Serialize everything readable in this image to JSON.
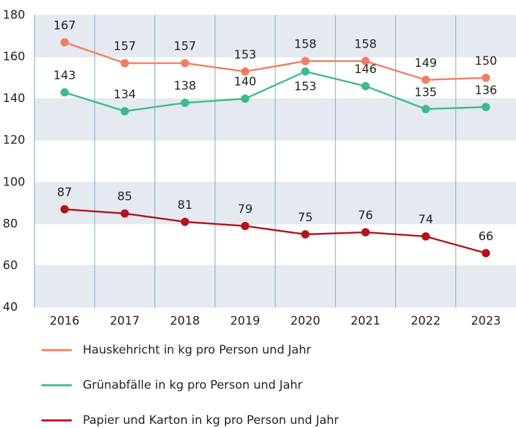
{
  "chart_data": {
    "type": "line",
    "categories": [
      "2016",
      "2017",
      "2018",
      "2019",
      "2020",
      "2021",
      "2022",
      "2023"
    ],
    "series": [
      {
        "name": "Hauskehricht in kg pro Person und Jahr",
        "color": "#f07f5f",
        "values": [
          167,
          157,
          157,
          153,
          158,
          158,
          149,
          150
        ]
      },
      {
        "name": "Grünabfälle in kg pro Person und Jahr",
        "color": "#3dba8a",
        "values": [
          143,
          134,
          138,
          140,
          153,
          146,
          135,
          136
        ]
      },
      {
        "name": "Papier und Karton in kg pro Person und Jahr",
        "color": "#b5121b",
        "values": [
          87,
          85,
          81,
          79,
          75,
          76,
          74,
          66
        ]
      }
    ],
    "ylim": [
      40,
      180
    ],
    "yticks": [
      40,
      60,
      80,
      100,
      120,
      140,
      160,
      180
    ],
    "grid": true,
    "legend": "bottom"
  }
}
